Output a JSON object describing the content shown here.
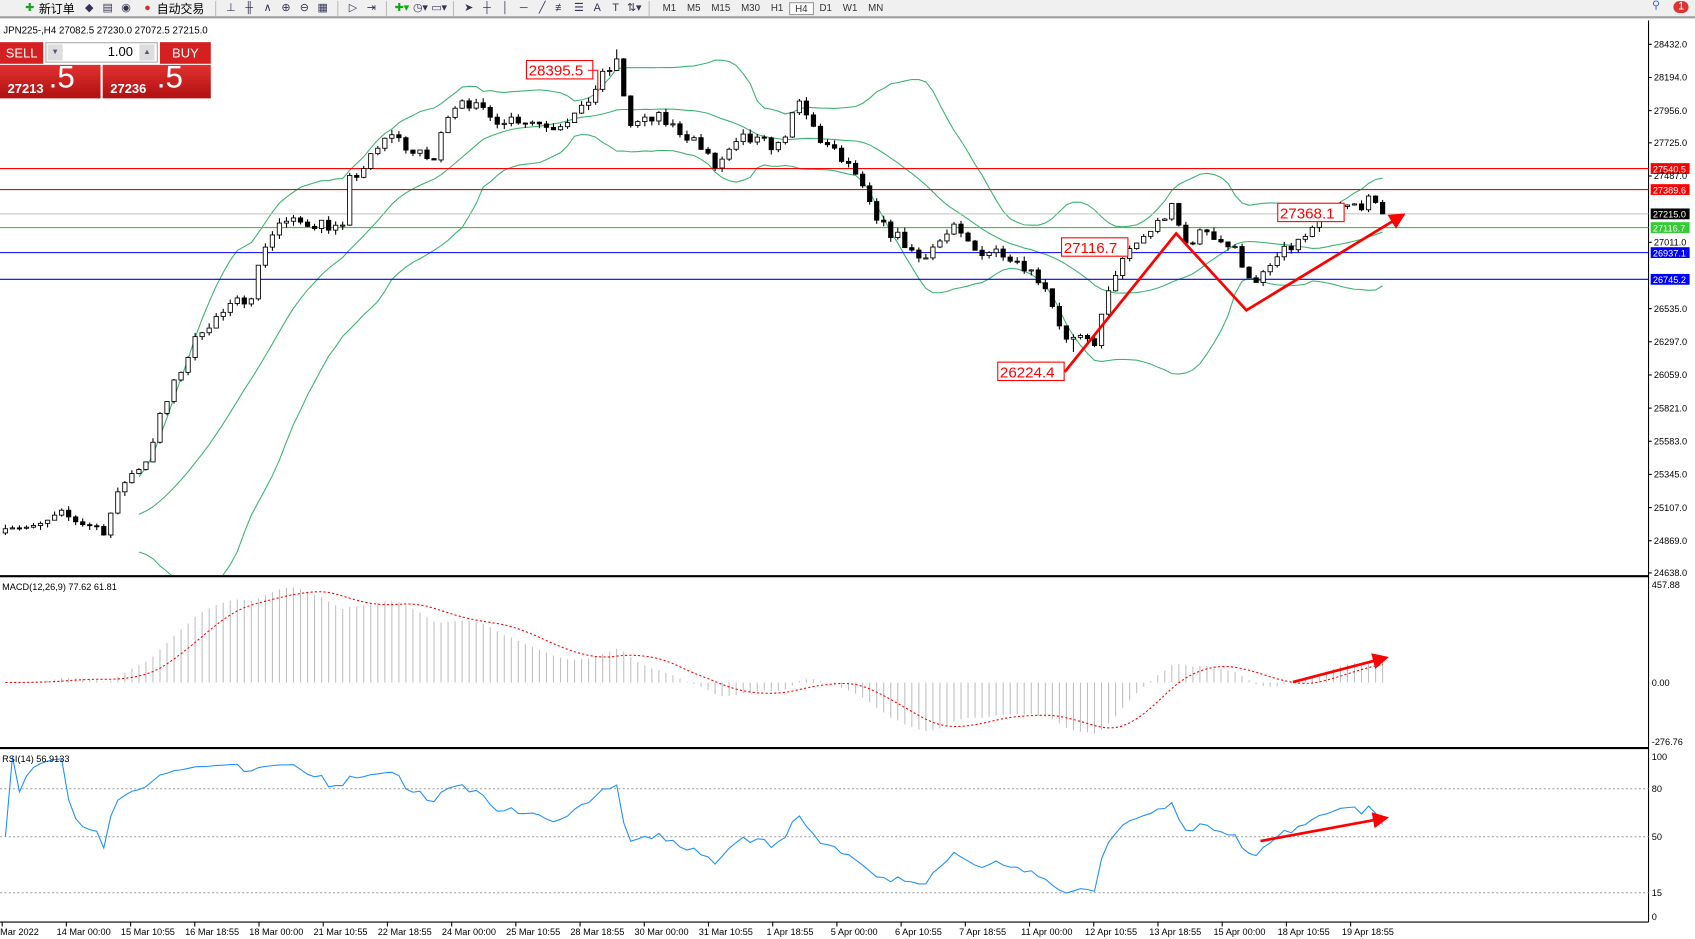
{
  "toolbar": {
    "new_order": "新订单",
    "auto_trading": "自动交易",
    "timeframes": [
      "M1",
      "M5",
      "M15",
      "M30",
      "H1",
      "H4",
      "D1",
      "W1",
      "MN"
    ],
    "notification_count": "1"
  },
  "chart_info": "JPN225-,H4  27082.5 27230.0 27072.5 27215.0",
  "trade_panel": {
    "sell": "SELL",
    "buy": "BUY",
    "lot": "1.00",
    "sell_price_main": "27213",
    "sell_price_big": ".5",
    "buy_price_main": "27236",
    "buy_price_big": ".5"
  },
  "price_axis": [
    "28432.0",
    "28194.0",
    "27956.0",
    "27725.0",
    "27487.0",
    "27011.0",
    "26535.0",
    "26297.0",
    "26059.0",
    "25821.0",
    "25583.0",
    "25345.0",
    "25107.0",
    "24869.0",
    "24638.0"
  ],
  "price_lines": [
    {
      "label": "27540.5",
      "color": "#ff0000"
    },
    {
      "label": "27389.6",
      "color": "#ff0000"
    },
    {
      "label": "27215.0",
      "color": "#000000"
    },
    {
      "label": "27116.7",
      "color": "#32cd32"
    },
    {
      "label": "26937.1",
      "color": "#0000ff"
    },
    {
      "label": "26745.2",
      "color": "#0000ff"
    }
  ],
  "annotations": [
    "28395.5",
    "27368.1",
    "27116.7",
    "26224.4"
  ],
  "macd": {
    "label": "MACD(12,26,9) 77.62 61.81",
    "axis": [
      "457.88",
      "0.00",
      "-276.76"
    ]
  },
  "rsi": {
    "label": "RSI(14) 56.9133",
    "axis": [
      "100",
      "80",
      "50",
      "15",
      "0"
    ]
  },
  "time_axis": [
    "Mar 2022",
    "14 Mar 00:00",
    "15 Mar 10:55",
    "16 Mar 18:55",
    "18 Mar 00:00",
    "21 Mar 10:55",
    "22 Mar 18:55",
    "24 Mar 00:00",
    "25 Mar 10:55",
    "28 Mar 18:55",
    "30 Mar 00:00",
    "31 Mar 10:55",
    "1 Apr 18:55",
    "5 Apr 00:00",
    "6 Apr 10:55",
    "7 Apr 18:55",
    "11 Apr 00:00",
    "12 Apr 10:55",
    "13 Apr 18:55",
    "15 Apr 00:00",
    "18 Apr 10:55",
    "19 Apr 18:55"
  ],
  "chart_data": {
    "type": "candlestick",
    "symbol": "JPN225-",
    "timeframe": "H4",
    "ylim": [
      24638,
      28432
    ],
    "price_path": [
      [
        0,
        25000
      ],
      [
        4,
        24950
      ],
      [
        8,
        25050
      ],
      [
        14,
        24950
      ],
      [
        17,
        25300
      ],
      [
        20,
        25450
      ],
      [
        22,
        25750
      ],
      [
        25,
        26100
      ],
      [
        28,
        26400
      ],
      [
        31,
        26500
      ],
      [
        35,
        26650
      ],
      [
        37,
        27000
      ],
      [
        39,
        27150
      ],
      [
        45,
        27150
      ],
      [
        48,
        27100
      ],
      [
        49,
        27450
      ],
      [
        51,
        27550
      ],
      [
        55,
        27800
      ],
      [
        58,
        27650
      ],
      [
        61,
        27600
      ],
      [
        63,
        27950
      ],
      [
        65,
        28050
      ],
      [
        69,
        27900
      ],
      [
        73,
        27900
      ],
      [
        78,
        27850
      ],
      [
        82,
        27950
      ],
      [
        85,
        28200
      ],
      [
        87,
        28300
      ],
      [
        89,
        27850
      ],
      [
        93,
        27900
      ],
      [
        98,
        27750
      ],
      [
        101,
        27550
      ],
      [
        105,
        27750
      ],
      [
        110,
        27700
      ],
      [
        113,
        28000
      ],
      [
        116,
        27750
      ],
      [
        121,
        27500
      ],
      [
        124,
        27150
      ],
      [
        127,
        27050
      ],
      [
        130,
        26900
      ],
      [
        135,
        27100
      ],
      [
        138,
        26950
      ],
      [
        142,
        26950
      ],
      [
        145,
        26850
      ],
      [
        148,
        26700
      ],
      [
        151,
        26300
      ],
      [
        155,
        26300
      ],
      [
        158,
        26800
      ],
      [
        161,
        27000
      ],
      [
        166,
        27250
      ],
      [
        168,
        27000
      ],
      [
        171,
        27100
      ],
      [
        175,
        26950
      ],
      [
        178,
        26700
      ],
      [
        181,
        26900
      ],
      [
        185,
        27050
      ],
      [
        190,
        27250
      ],
      [
        194,
        27300
      ],
      [
        196,
        27215
      ]
    ],
    "levels": [
      27540.5,
      27389.6,
      27215.0,
      27116.7,
      26937.1,
      26745.2
    ],
    "rsi_levels": [
      80,
      50,
      15
    ]
  },
  "colors": {
    "bands": "#3cb371",
    "macd_hist": "#c0c0c0",
    "macd_signal": "#ff0000",
    "rsi": "#1e90ff",
    "arrow": "#ff0000"
  }
}
